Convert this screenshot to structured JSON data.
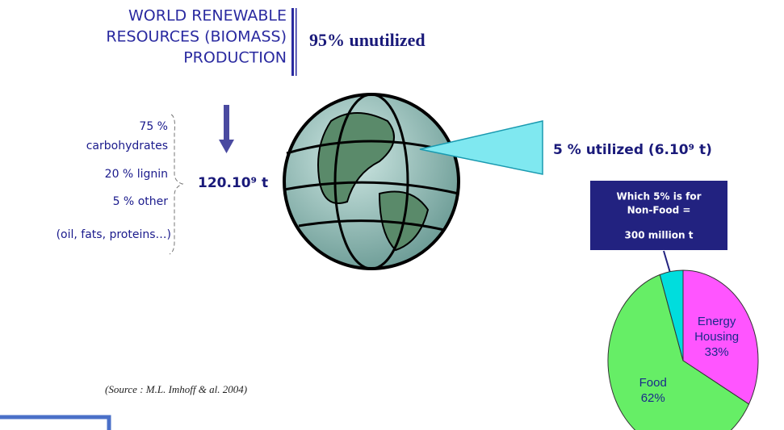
{
  "header": {
    "title_lines": [
      "WORLD RENEWABLE",
      "RESOURCES (BIOMASS)",
      "PRODUCTION"
    ],
    "unutilized": "95% unutilized"
  },
  "composition": {
    "lines": [
      "75 %",
      "carbohydrates",
      "20 % lignin",
      "5 % other",
      "(oil, fats, proteins…)"
    ],
    "total": "120.10⁹ t"
  },
  "utilized": "5  % utilized  (6.10⁹ t)",
  "box": {
    "lines": [
      "Which 5% is for",
      "Non-Food =",
      "300 million t"
    ]
  },
  "source": "(Source : M.L. Imhoff & al. 2004)",
  "chart_data": {
    "type": "pie",
    "categories": [
      "Energy Housing",
      "Food",
      null
    ],
    "values": [
      33,
      62,
      5
    ],
    "value_labels": [
      "33%",
      "62%",
      null
    ],
    "colors": [
      "#ff55ff",
      "#66ee66",
      "#00dddd"
    ]
  }
}
